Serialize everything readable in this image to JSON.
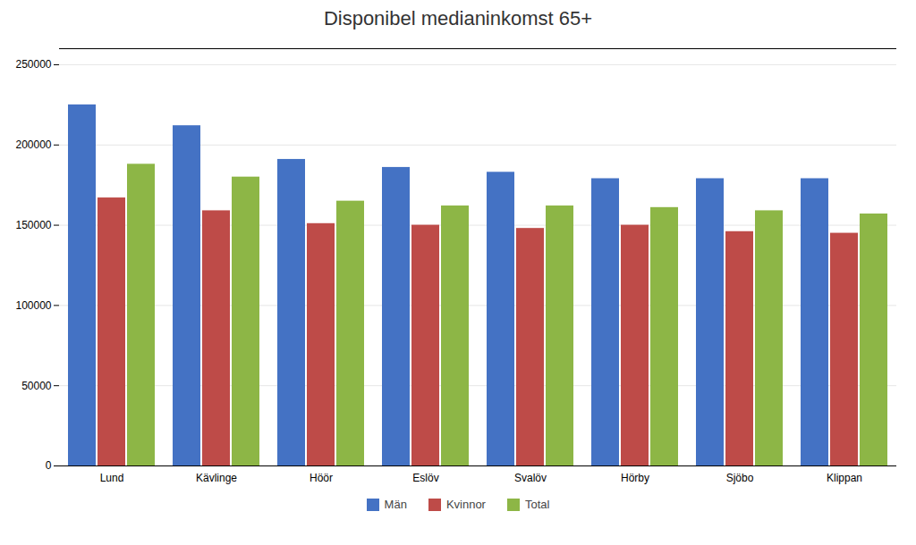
{
  "chart_data": {
    "type": "bar",
    "title": "Disponibel medianinkomst 65+",
    "categories": [
      "Lund",
      "Kävlinge",
      "Höör",
      "Eslöv",
      "Svalöv",
      "Hörby",
      "Sjöbo",
      "Klippan"
    ],
    "series": [
      {
        "name": "Män",
        "color": "#4472C4",
        "values": [
          225000,
          212000,
          191000,
          186000,
          183000,
          179000,
          179000,
          179000
        ]
      },
      {
        "name": "Kvinnor",
        "color": "#BE4B48",
        "values": [
          167000,
          159000,
          151000,
          150000,
          148000,
          150000,
          146000,
          145000
        ]
      },
      {
        "name": "Total",
        "color": "#8DB646",
        "values": [
          188000,
          180000,
          165000,
          162000,
          162000,
          161000,
          159000,
          157000
        ]
      }
    ],
    "ylim": [
      0,
      260000
    ],
    "yticks": [
      0,
      50000,
      100000,
      150000,
      200000,
      250000
    ],
    "grid": true,
    "legend": "bottom"
  }
}
